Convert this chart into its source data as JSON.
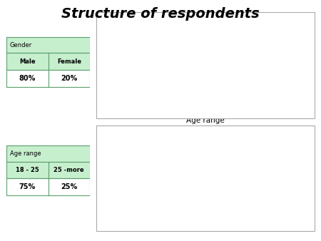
{
  "title": "Structure of respondents",
  "title_fontsize": 14,
  "title_fontweight": "bold",
  "gender_pie": {
    "labels": [
      "Male",
      "Female"
    ],
    "values": [
      80,
      20
    ],
    "colors": [
      "#9999cc",
      "#7b2442"
    ],
    "explode": [
      0,
      0.08
    ],
    "title": "Gender",
    "table_header": "Gender",
    "table_cols": [
      "Male",
      "Female"
    ],
    "table_vals": [
      "80%",
      "20%"
    ],
    "startangle": 90,
    "aspect": 0.4
  },
  "age_pie": {
    "labels": [
      "18 - 25",
      "25  -more"
    ],
    "values": [
      75,
      25
    ],
    "colors": [
      "#9999cc",
      "#7b2442"
    ],
    "explode": [
      0,
      0.08
    ],
    "title": "Age range",
    "table_header": "Age range",
    "table_cols": [
      "18 - 25",
      "25 -more"
    ],
    "table_vals": [
      "75%",
      "25%"
    ],
    "startangle": 90,
    "aspect": 1.0
  },
  "bg_color": "#ffffff",
  "table_header_bg": "#c6efce",
  "table_border_color": "#5a9e6a",
  "box_bg": "#ffffff",
  "box_border": "#aaaaaa"
}
